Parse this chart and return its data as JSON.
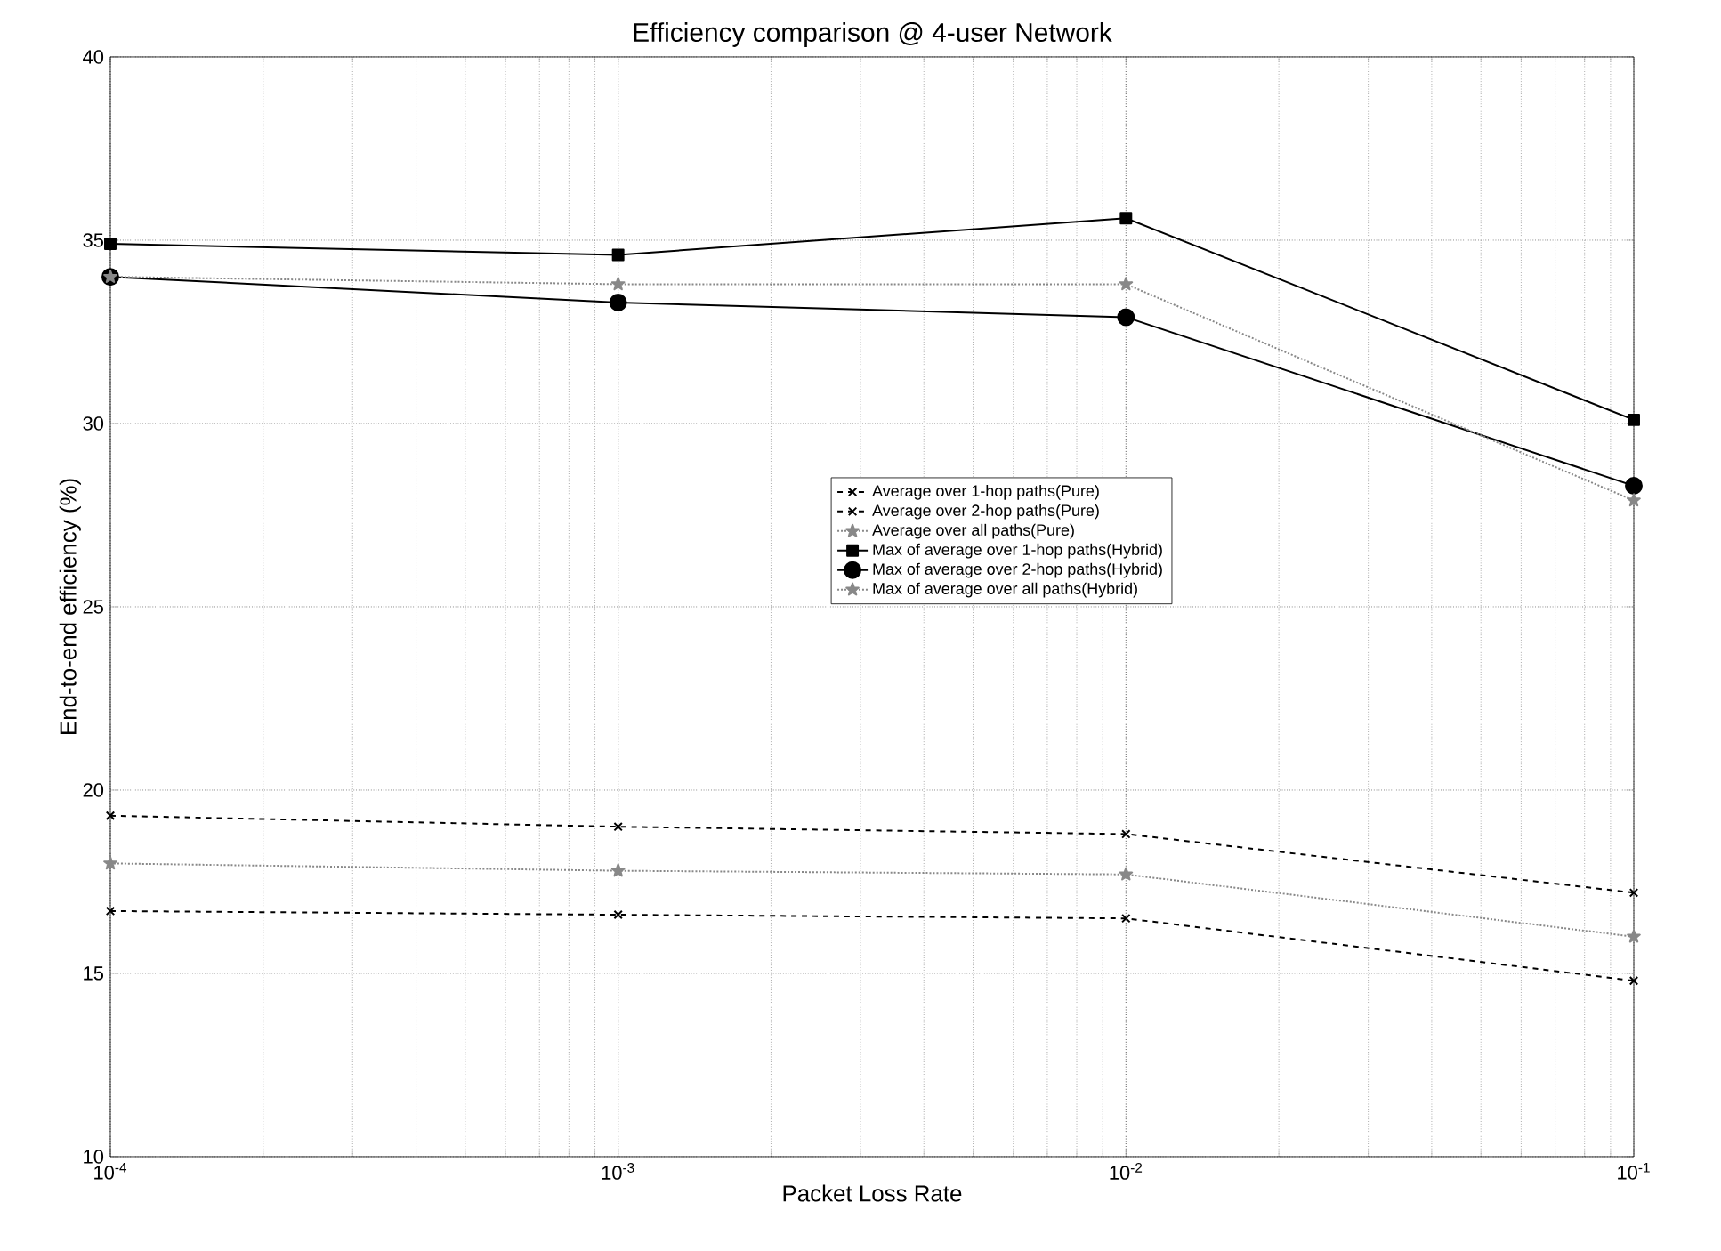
{
  "chart_data": {
    "type": "line",
    "title": "Efficiency comparison @ 4-user Network",
    "xlabel": "Packet Loss Rate",
    "ylabel": "End-to-end efficiency (%)",
    "x": [
      0.0001,
      0.001,
      0.01,
      0.1
    ],
    "series": [
      {
        "name": "Average over 1-hop paths(Pure)",
        "color": "#000000",
        "marker": "cross",
        "line_style": "dashed",
        "values": [
          19.3,
          19.0,
          18.8,
          17.2
        ]
      },
      {
        "name": "Average over 2-hop paths(Pure)",
        "color": "#000000",
        "marker": "cross",
        "line_style": "dashed",
        "values": [
          16.7,
          16.6,
          16.5,
          14.8
        ]
      },
      {
        "name": "Average over all paths(Pure)",
        "color": "#888888",
        "marker": "star",
        "line_style": "dotted",
        "values": [
          18.0,
          17.8,
          17.7,
          16.0
        ]
      },
      {
        "name": "Max of average over 1-hop paths(Hybrid)",
        "color": "#000000",
        "marker": "square",
        "line_style": "solid",
        "values": [
          34.9,
          34.6,
          35.6,
          30.1
        ]
      },
      {
        "name": "Max of average over 2-hop paths(Hybrid)",
        "color": "#000000",
        "marker": "circle",
        "line_style": "solid",
        "values": [
          34.0,
          33.3,
          32.9,
          28.3
        ]
      },
      {
        "name": "Max of average over all paths(Hybrid)",
        "color": "#888888",
        "marker": "star",
        "line_style": "dotted",
        "values": [
          34.0,
          33.8,
          33.8,
          27.9
        ]
      }
    ],
    "log": "x",
    "xlim": [
      0.0001,
      0.1
    ],
    "xticks": [
      {
        "value": 0.0001,
        "label": "10$^{-4}$"
      },
      {
        "value": 0.001,
        "label": "10$^{-3}$"
      },
      {
        "value": 0.01,
        "label": "10$^{-2}$"
      },
      {
        "value": 0.1,
        "label": "10$^{-1}$"
      }
    ],
    "ylim": [
      10,
      40
    ],
    "yticks": [
      10,
      15,
      20,
      25,
      30,
      35,
      40
    ],
    "grid": true,
    "legend": "center"
  }
}
